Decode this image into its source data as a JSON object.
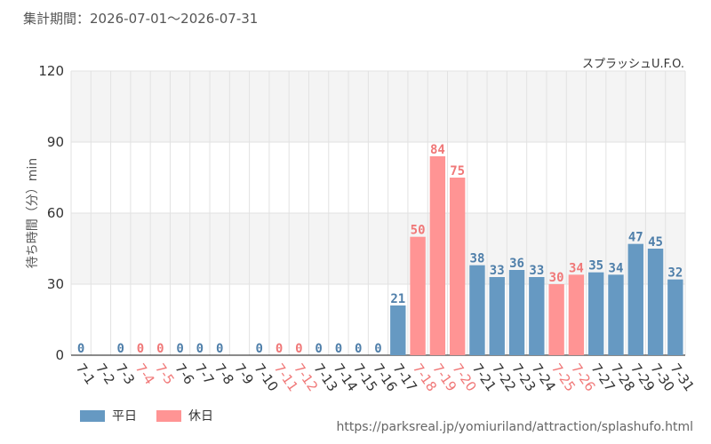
{
  "header": {
    "period_label": "集計期間：2026-07-01～2026-07-31"
  },
  "legend": {
    "weekday_label": "平日",
    "holiday_label": "休日"
  },
  "footer": {
    "source_url": "https://parksreal.jp/yomiuriland/attraction/splashufo.html"
  },
  "colors": {
    "weekday": "#6699c2",
    "holiday": "#ff9494",
    "weekday_text": "#4f7faa",
    "holiday_text": "#f07878",
    "band": "#f4f4f4",
    "grid": "#e2e2e2"
  },
  "chart_data": {
    "type": "bar",
    "title": "スプラッシュU.F.O.",
    "ylabel": "待ち時間（分）min",
    "xlabel": "",
    "ylim": [
      0,
      120
    ],
    "yticks": [
      0,
      30,
      60,
      90,
      120
    ],
    "grid": true,
    "legend_position": "bottom-left",
    "categories": [
      "7-1",
      "7-2",
      "7-3",
      "7-4",
      "7-5",
      "7-6",
      "7-7",
      "7-8",
      "7-9",
      "7-10",
      "7-11",
      "7-12",
      "7-13",
      "7-14",
      "7-15",
      "7-16",
      "7-17",
      "7-18",
      "7-19",
      "7-20",
      "7-21",
      "7-22",
      "7-23",
      "7-24",
      "7-25",
      "7-26",
      "7-27",
      "7-28",
      "7-29",
      "7-30",
      "7-31"
    ],
    "day_type": [
      "weekday",
      "weekday",
      "weekday",
      "holiday",
      "holiday",
      "weekday",
      "weekday",
      "weekday",
      "weekday",
      "weekday",
      "holiday",
      "holiday",
      "weekday",
      "weekday",
      "weekday",
      "weekday",
      "weekday",
      "holiday",
      "holiday",
      "holiday",
      "weekday",
      "weekday",
      "weekday",
      "weekday",
      "holiday",
      "holiday",
      "weekday",
      "weekday",
      "weekday",
      "weekday",
      "weekday"
    ],
    "series": [
      {
        "name": "平日",
        "values": [
          0,
          null,
          0,
          null,
          null,
          0,
          0,
          0,
          null,
          0,
          null,
          null,
          0,
          0,
          0,
          0,
          21,
          null,
          null,
          null,
          38,
          33,
          36,
          33,
          null,
          null,
          35,
          34,
          47,
          45,
          32
        ]
      },
      {
        "name": "休日",
        "values": [
          null,
          null,
          null,
          0,
          0,
          null,
          null,
          null,
          null,
          null,
          0,
          0,
          null,
          null,
          null,
          null,
          null,
          50,
          84,
          75,
          null,
          null,
          null,
          null,
          30,
          34,
          null,
          null,
          null,
          null,
          null
        ]
      }
    ]
  }
}
